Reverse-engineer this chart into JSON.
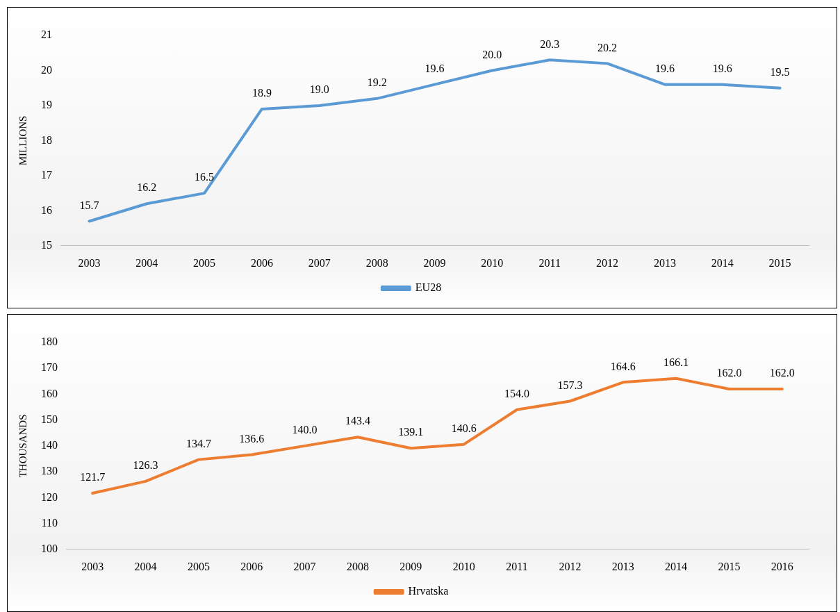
{
  "chart_data": [
    {
      "type": "line",
      "ylabel": "MILLIONS",
      "categories": [
        "2003",
        "2004",
        "2005",
        "2006",
        "2007",
        "2008",
        "2009",
        "2010",
        "2011",
        "2012",
        "2013",
        "2014",
        "2015"
      ],
      "series": [
        {
          "name": "EU28",
          "color": "#5b9bd5",
          "values": [
            15.7,
            16.2,
            16.5,
            18.9,
            19.0,
            19.2,
            19.6,
            20.0,
            20.3,
            20.2,
            19.6,
            19.6,
            19.5
          ],
          "value_labels": [
            "15.7",
            "16.2",
            "16.5",
            "18.9",
            "19.0",
            "19.2",
            "19.6",
            "20.0",
            "20.3",
            "20.2",
            "19.6",
            "19.6",
            "19.5"
          ]
        }
      ],
      "ylim": [
        15,
        21
      ],
      "yticks": [
        15,
        16,
        17,
        18,
        19,
        20,
        21
      ],
      "legend": "bottom",
      "grid": false,
      "marker": "none",
      "line_style": "solid"
    },
    {
      "type": "line",
      "ylabel": "THOUSANDS",
      "categories": [
        "2003",
        "2004",
        "2005",
        "2006",
        "2007",
        "2008",
        "2009",
        "2010",
        "2011",
        "2012",
        "2013",
        "2014",
        "2015",
        "2016"
      ],
      "series": [
        {
          "name": "Hrvatska",
          "color": "#ed7d31",
          "values": [
            121.7,
            126.3,
            134.7,
            136.6,
            140.0,
            143.4,
            139.1,
            140.6,
            154.0,
            157.3,
            164.6,
            166.1,
            162.0,
            162.0
          ],
          "value_labels": [
            "121.7",
            "126.3",
            "134.7",
            "136.6",
            "140.0",
            "143.4",
            "139.1",
            "140.6",
            "154.0",
            "157.3",
            "164.6",
            "166.1",
            "162.0",
            "162.0"
          ]
        }
      ],
      "ylim": [
        100,
        180
      ],
      "yticks": [
        100,
        110,
        120,
        130,
        140,
        150,
        160,
        170,
        180
      ],
      "legend": "bottom",
      "grid": false,
      "marker": "none",
      "line_style": "solid"
    }
  ]
}
